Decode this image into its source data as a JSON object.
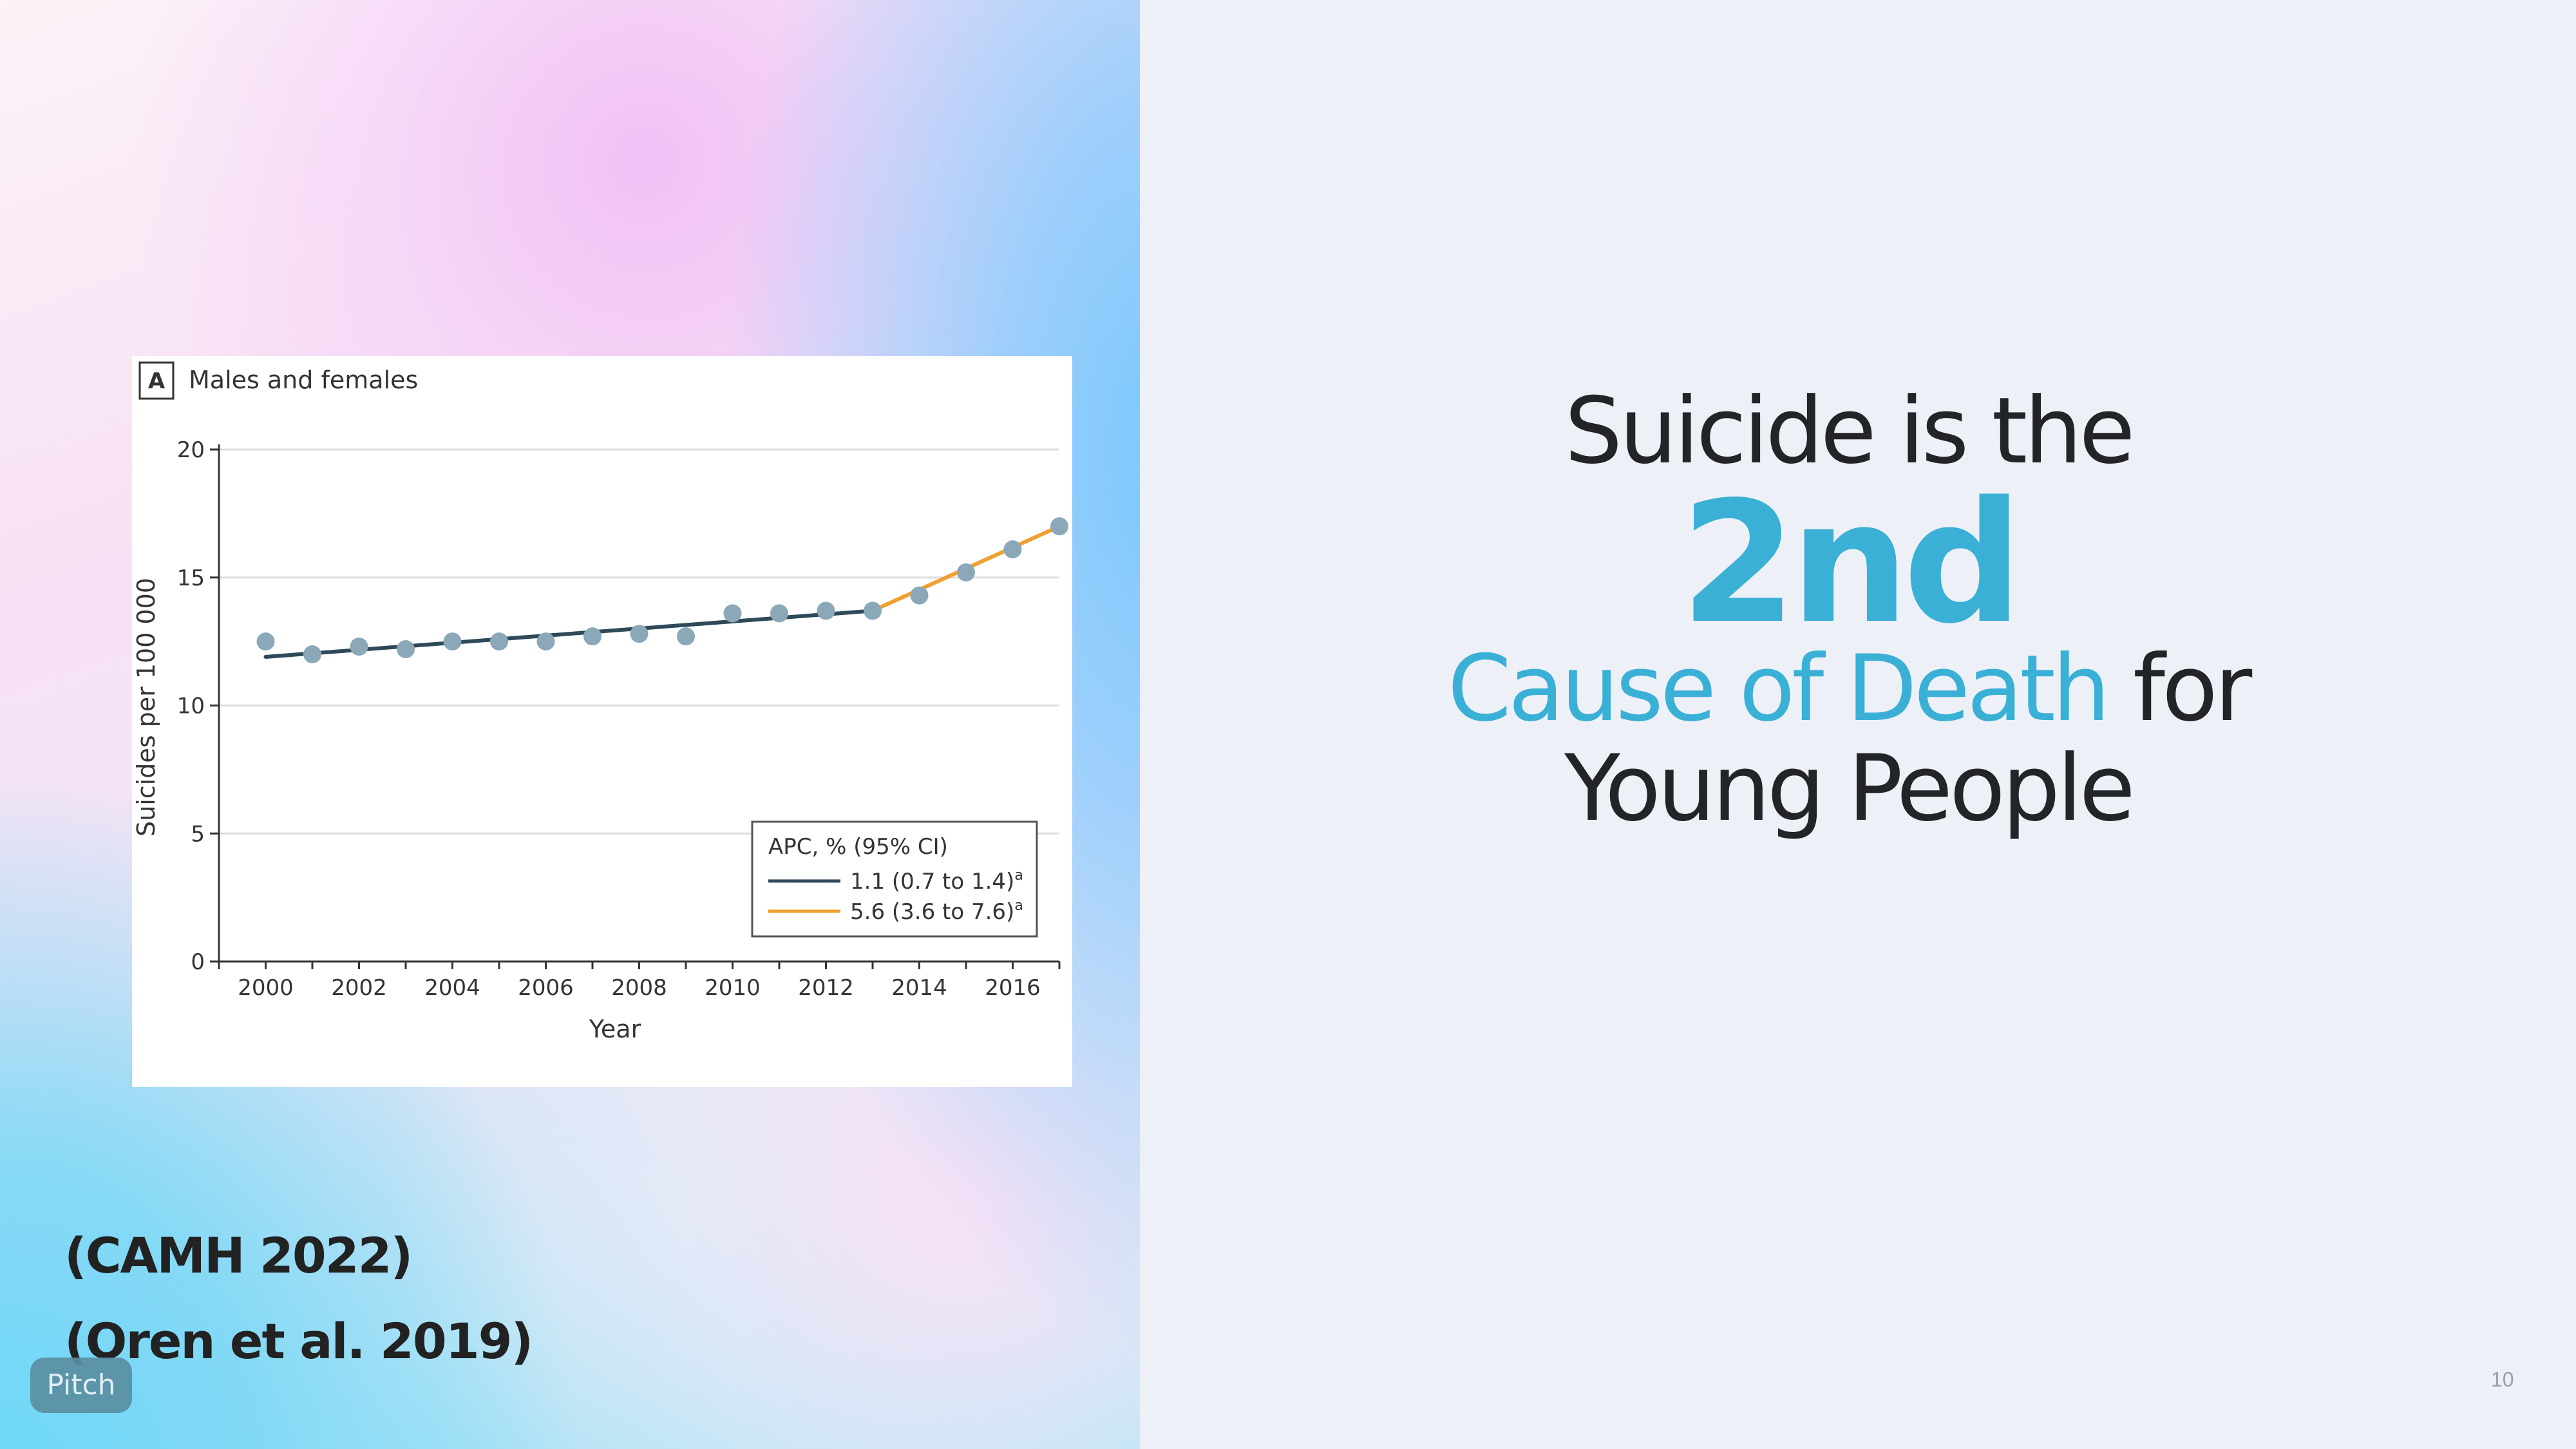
{
  "slide": {
    "headline_line1": "Suicide is the",
    "headline_rank": "2nd",
    "headline_cause": "Cause of Death",
    "headline_for": " for",
    "headline_line4": "Young People",
    "citations": [
      "(CAMH 2022)",
      "(Oren et al. 2019)"
    ],
    "branding": "Pitch",
    "page_number": "10",
    "colors": {
      "accent": "#3ab0d6",
      "text": "#222428",
      "background": "#eef0f8"
    }
  },
  "chart_data": {
    "type": "scatter",
    "panel_letter": "A",
    "title": "Males and females",
    "xlabel": "Year",
    "ylabel": "Suicides per 100 000",
    "xlim": [
      1999,
      2017
    ],
    "ylim": [
      0,
      20
    ],
    "xticks": [
      "2000",
      "2002",
      "2004",
      "2006",
      "2008",
      "2010",
      "2012",
      "2014",
      "2016"
    ],
    "yticks": [
      "0",
      "5",
      "10",
      "15",
      "20"
    ],
    "grid": "horizontal",
    "points": {
      "x": [
        2000,
        2001,
        2002,
        2003,
        2004,
        2005,
        2006,
        2007,
        2008,
        2009,
        2010,
        2011,
        2012,
        2013,
        2014,
        2015,
        2016,
        2017
      ],
      "y": [
        12.5,
        12.0,
        12.3,
        12.2,
        12.5,
        12.5,
        12.5,
        12.7,
        12.8,
        12.7,
        13.6,
        13.6,
        13.7,
        13.7,
        14.3,
        15.2,
        16.1,
        17.0
      ]
    },
    "series": [
      {
        "name": "1.1 (0.7 to 1.4)",
        "superscript": "a",
        "color": "#2e4a5a",
        "x": [
          2000,
          2013
        ],
        "y": [
          11.9,
          13.7
        ]
      },
      {
        "name": "5.6 (3.6 to 7.6)",
        "superscript": "a",
        "color": "#f0a030",
        "x": [
          2013,
          2017
        ],
        "y": [
          13.7,
          17.0
        ]
      }
    ],
    "legend_title": "APC, % (95% CI)",
    "legend_position": "bottom-right",
    "point_color": "#8aa8b8"
  }
}
